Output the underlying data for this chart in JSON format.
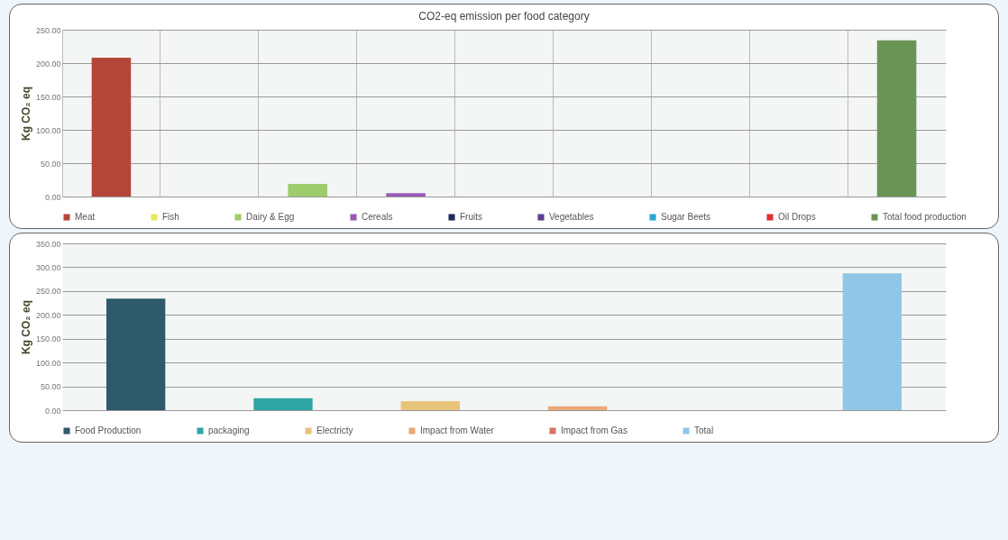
{
  "chart_data": [
    {
      "type": "bar",
      "title": "CO2-eq emission per food category",
      "ylabel": "Kg CO₂ eq",
      "categories": [
        null,
        null,
        null,
        null,
        null,
        null,
        null,
        null,
        null
      ],
      "series": [
        {
          "name": "Meat",
          "color": "#b5473a",
          "values": [
            208,
            null,
            null,
            null,
            null,
            null,
            null,
            null,
            null
          ]
        },
        {
          "name": "Fish",
          "color": "#e8e85a",
          "values": [
            null,
            0,
            null,
            null,
            null,
            null,
            null,
            null,
            null
          ]
        },
        {
          "name": "Dairy & Egg",
          "color": "#9ccc6b",
          "values": [
            null,
            null,
            19,
            null,
            null,
            null,
            null,
            null,
            null
          ]
        },
        {
          "name": "Cereals",
          "color": "#9b59b6",
          "values": [
            null,
            null,
            null,
            5,
            null,
            null,
            null,
            null,
            null
          ]
        },
        {
          "name": "Fruits",
          "color": "#1f2a5a",
          "values": [
            null,
            null,
            null,
            null,
            0,
            null,
            null,
            null,
            null
          ]
        },
        {
          "name": "Vegetables",
          "color": "#5b3f8f",
          "values": [
            null,
            null,
            null,
            null,
            null,
            0,
            null,
            null,
            null
          ]
        },
        {
          "name": "Sugar Beets",
          "color": "#2aa6d6",
          "values": [
            null,
            null,
            null,
            null,
            null,
            null,
            0,
            null,
            null
          ]
        },
        {
          "name": "Oil Drops",
          "color": "#e03030",
          "values": [
            null,
            null,
            null,
            null,
            null,
            null,
            null,
            0,
            null
          ]
        },
        {
          "name": "Total food production",
          "color": "#6a9455",
          "values": [
            null,
            null,
            null,
            null,
            null,
            null,
            null,
            null,
            234
          ]
        }
      ],
      "ylim": [
        0,
        250
      ],
      "yticks": [
        {
          "value": 0,
          "label": "0.00"
        },
        {
          "value": 50,
          "label": "50.00"
        },
        {
          "value": 100,
          "label": "100.00"
        },
        {
          "value": 150,
          "label": "150.00"
        },
        {
          "value": 200,
          "label": "200.00"
        },
        {
          "value": 250,
          "label": "250.00"
        }
      ],
      "grid": true,
      "legend": "bottom",
      "tick_labels": "y"
    },
    {
      "type": "bar",
      "ylabel": "Kg CO₂ eq",
      "categories": [
        null,
        null,
        null,
        null,
        null,
        null
      ],
      "series": [
        {
          "name": "Food Production",
          "color": "#2e5a6b",
          "values": [
            234,
            null,
            null,
            null,
            null,
            null
          ]
        },
        {
          "name": "packaging",
          "color": "#2ea5a5",
          "values": [
            null,
            25,
            null,
            null,
            null,
            null
          ]
        },
        {
          "name": "Electricty",
          "color": "#e8c47a",
          "values": [
            null,
            null,
            19,
            null,
            null,
            null
          ]
        },
        {
          "name": "Impact from Water",
          "color": "#e8a878",
          "values": [
            null,
            null,
            null,
            8,
            null,
            null
          ]
        },
        {
          "name": "Impact from Gas",
          "color": "#d9736a",
          "values": [
            null,
            null,
            null,
            null,
            0,
            null
          ]
        },
        {
          "name": "Total",
          "color": "#92c6e6",
          "values": [
            null,
            null,
            null,
            null,
            null,
            287
          ]
        }
      ],
      "ylim": [
        0,
        350
      ],
      "yticks": [
        {
          "value": 0,
          "label": "0.00"
        },
        {
          "value": 50,
          "label": "50.00"
        },
        {
          "value": 100,
          "label": "100.00"
        },
        {
          "value": 150,
          "label": "150.00"
        },
        {
          "value": 200,
          "label": "200.00"
        },
        {
          "value": 250,
          "label": "250.00"
        },
        {
          "value": 300,
          "label": "300.00"
        },
        {
          "value": 350,
          "label": "350.00"
        }
      ],
      "grid": "y",
      "legend": "bottom",
      "tick_labels": "y"
    }
  ]
}
